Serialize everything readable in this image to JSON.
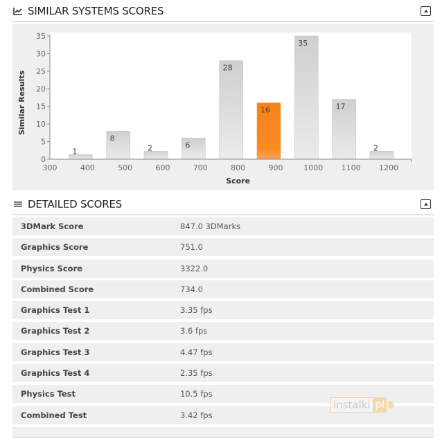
{
  "sections": {
    "similar": {
      "title": "SIMILAR SYSTEMS SCORES",
      "icon": "line-chart-icon",
      "collapse_icon": "collapse-up-icon"
    },
    "detailed": {
      "title": "DETAILED SCORES",
      "icon": "list-icon",
      "collapse_icon": "collapse-up-icon"
    }
  },
  "chart_data": {
    "type": "bar",
    "title": "",
    "xlabel": "Score",
    "ylabel": "Similar Results",
    "categories": [
      "400",
      "500",
      "600",
      "700",
      "800",
      "900",
      "1000",
      "1100",
      "1200"
    ],
    "values": [
      1,
      8,
      2,
      6,
      28,
      16,
      35,
      17,
      2
    ],
    "highlight_index": 5,
    "highlight_color": "#f7821b",
    "bar_color": "#d4d4d4",
    "x_ticks": [
      300,
      400,
      500,
      600,
      700,
      800,
      900,
      1000,
      1100,
      1200
    ],
    "y_ticks": [
      0,
      5,
      10,
      15,
      20,
      25,
      30,
      35
    ],
    "xlim": [
      300,
      1260
    ],
    "ylim": [
      0,
      35
    ],
    "grid": false,
    "legend": "none"
  },
  "detailed_scores": [
    {
      "label": "3DMark Score",
      "value": "847.0 3DMarks"
    },
    {
      "label": "Graphics Score",
      "value": "751.0"
    },
    {
      "label": "Physics Score",
      "value": "3322.0"
    },
    {
      "label": "Combined Score",
      "value": "734.0"
    },
    {
      "label": "Graphics Test 1",
      "value": "3.35 fps"
    },
    {
      "label": "Graphics Test 2",
      "value": "3.6 fps"
    },
    {
      "label": "Graphics Test 3",
      "value": "4.47 fps"
    },
    {
      "label": "Graphics Test 4",
      "value": "2.35 fps"
    },
    {
      "label": "Physics Test",
      "value": "10.5 fps"
    },
    {
      "label": "Combined Test",
      "value": "3.42 fps"
    }
  ],
  "watermark": {
    "text": "instalki",
    "suffix": "pl"
  }
}
